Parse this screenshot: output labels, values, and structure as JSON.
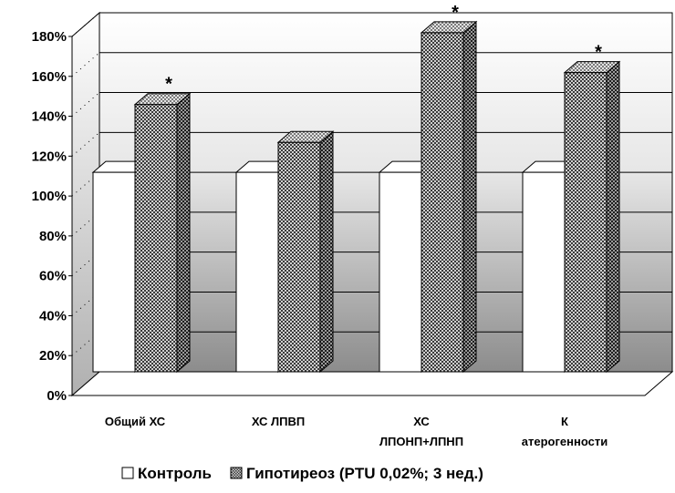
{
  "chart_data": {
    "type": "bar",
    "categories": [
      [
        "Общий ХС"
      ],
      [
        "ХС ЛПВП"
      ],
      [
        "ХС",
        "ЛПОНП+ЛПНП"
      ],
      [
        "К",
        "атерогенности"
      ]
    ],
    "series": [
      {
        "name": "Контроль",
        "values": [
          100,
          100,
          100,
          100
        ],
        "color": "#ffffff"
      },
      {
        "name": "Гипотиреоз (PTU 0,02%; 3 нед.)",
        "values": [
          134,
          115,
          170,
          150
        ],
        "color": "#7a7a7a",
        "pattern": "dense-checker"
      }
    ],
    "annotations": [
      "*",
      "",
      "*",
      "*"
    ],
    "y_ticks": [
      "0%",
      "20%",
      "40%",
      "60%",
      "80%",
      "100%",
      "120%",
      "140%",
      "160%",
      "180%"
    ],
    "ylim": [
      0,
      180
    ],
    "y_unit": "%",
    "grid": true,
    "legend": "bottom",
    "style": "3d",
    "title": "",
    "xlabel": "",
    "ylabel": ""
  }
}
